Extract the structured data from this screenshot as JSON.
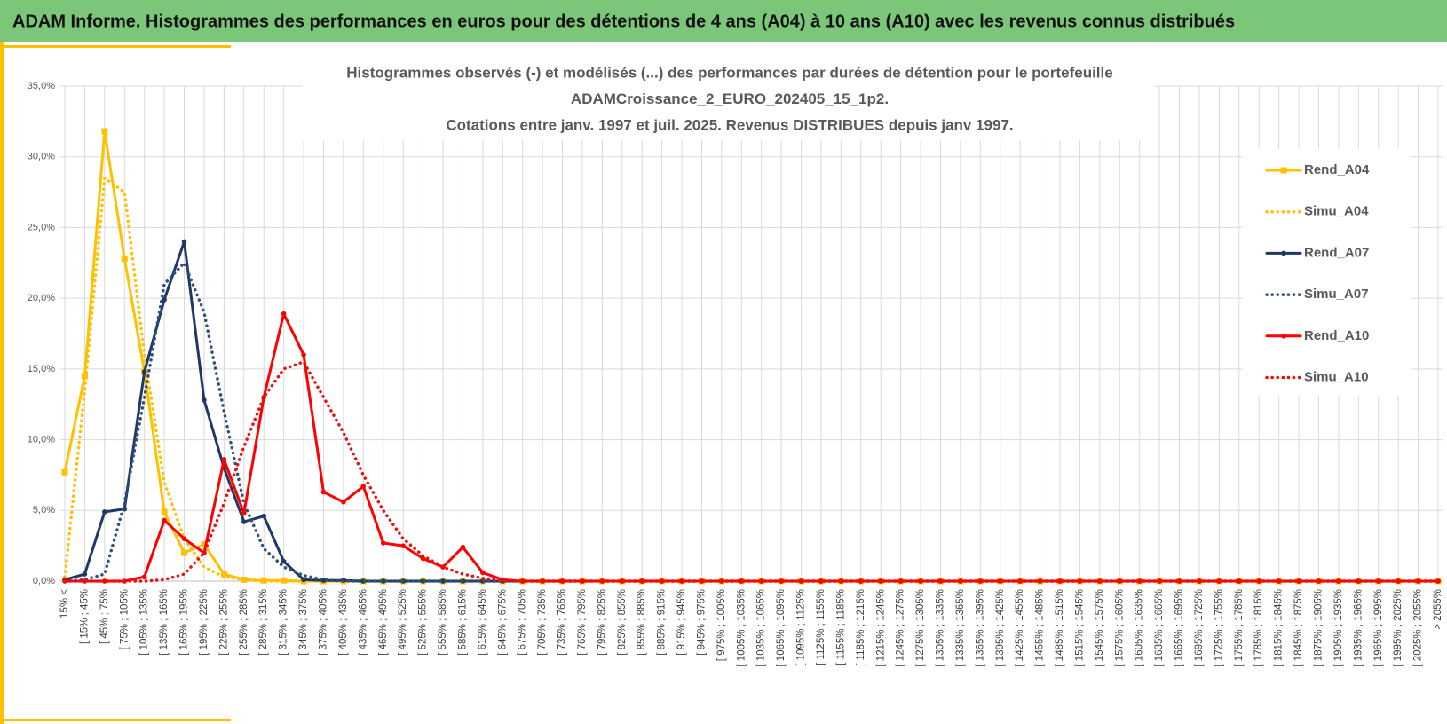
{
  "header": {
    "title": "ADAM Informe. Histogrammes des performances en euros pour des détentions de 4 ans (A04) à 10 ans (A10) avec les revenus connus distribués"
  },
  "chart_data": {
    "type": "line",
    "title": [
      "Histogrammes observés (-) et modélisés (...) des performances par durées de détention pour  le portefeuille",
      "ADAMCroissance_2_EURO_202405_15_1p2.",
      "Cotations entre janv. 1997 et juil. 2025. Revenus DISTRIBUES depuis janv 1997."
    ],
    "categories": [
      "15% <",
      "[ 15% ; 45%",
      "[ 45% ; 75%",
      "[ 75% ; 105%",
      "[ 105% ; 135%",
      "[ 135% ; 165%",
      "[ 165% ; 195%",
      "[ 195% ; 225%",
      "[ 225% ; 255%",
      "[ 255% ; 285%",
      "[ 285% ; 315%",
      "[ 315% ; 345%",
      "[ 345% ; 375%",
      "[ 375% ; 405%",
      "[ 405% ; 435%",
      "[ 435% ; 465%",
      "[ 465% ; 495%",
      "[ 495% ; 525%",
      "[ 525% ; 555%",
      "[ 555% ; 585%",
      "[ 585% ; 615%",
      "[ 615% ; 645%",
      "[ 645% ; 675%",
      "[ 675% ; 705%",
      "[ 705% ; 735%",
      "[ 735% ; 765%",
      "[ 765% ; 795%",
      "[ 795% ; 825%",
      "[ 825% ; 855%",
      "[ 855% ; 885%",
      "[ 885% ; 915%",
      "[ 915% ; 945%",
      "[ 945% ; 975%",
      "[ 975% ; 1005%",
      "[ 1005% ; 1035%",
      "[ 1035% ; 1065%",
      "[ 1065% ; 1095%",
      "[ 1095% ; 1125%",
      "[ 1125% ; 1155%",
      "[ 1155% ; 1185%",
      "[ 1185% ; 1215%",
      "[ 1215% ; 1245%",
      "[ 1245% ; 1275%",
      "[ 1275% ; 1305%",
      "[ 1305% ; 1335%",
      "[ 1335% ; 1365%",
      "[ 1365% ; 1395%",
      "[ 1395% ; 1425%",
      "[ 1425% ; 1455%",
      "[ 1455% ; 1485%",
      "[ 1485% ; 1515%",
      "[ 1515% ; 1545%",
      "[ 1545% ; 1575%",
      "[ 1575% ; 1605%",
      "[ 1605% ; 1635%",
      "[ 1635% ; 1665%",
      "[ 1665% ; 1695%",
      "[ 1695% ; 1725%",
      "[ 1725% ; 1755%",
      "[ 1755% ; 1785%",
      "[ 1785% ; 1815%",
      "[ 1815% ; 1845%",
      "[ 1845% ; 1875%",
      "[ 1875% ; 1905%",
      "[ 1905% ; 1935%",
      "[ 1935% ; 1965%",
      "[ 1965% ; 1995%",
      "[ 1995% ; 2025%",
      "[ 2025% ; 2055%",
      "> 2055%"
    ],
    "series": [
      {
        "name": "Rend_A04",
        "color": "#ffc000",
        "dash": "solid",
        "marker": "square",
        "values": [
          7.7,
          14.5,
          31.8,
          22.8,
          14.8,
          4.9,
          2.0,
          2.6,
          0.5,
          0.1,
          0.05,
          0.05,
          0,
          0,
          0,
          0,
          0,
          0,
          0,
          0,
          0,
          0,
          0,
          0,
          0,
          0,
          0,
          0,
          0,
          0,
          0,
          0,
          0,
          0,
          0,
          0,
          0,
          0,
          0,
          0,
          0,
          0,
          0,
          0,
          0,
          0,
          0,
          0,
          0,
          0,
          0,
          0,
          0,
          0,
          0,
          0,
          0,
          0,
          0,
          0,
          0,
          0,
          0,
          0,
          0,
          0,
          0,
          0,
          0,
          0
        ]
      },
      {
        "name": "Simu_A04",
        "color": "#ffc000",
        "dash": "dotted",
        "marker": null,
        "values": [
          0.3,
          13.5,
          28.5,
          27.5,
          16,
          7,
          3,
          1,
          0.3,
          0.1,
          0,
          0,
          0,
          0,
          0,
          0,
          0,
          0,
          0,
          0,
          0,
          0,
          0,
          0,
          0,
          0,
          0,
          0,
          0,
          0,
          0,
          0,
          0,
          0,
          0,
          0,
          0,
          0,
          0,
          0,
          0,
          0,
          0,
          0,
          0,
          0,
          0,
          0,
          0,
          0,
          0,
          0,
          0,
          0,
          0,
          0,
          0,
          0,
          0,
          0,
          0,
          0,
          0,
          0,
          0,
          0,
          0,
          0,
          0,
          0
        ]
      },
      {
        "name": "Rend_A07",
        "color": "#1f3864",
        "dash": "solid",
        "marker": "circle",
        "values": [
          0.1,
          0.5,
          4.9,
          5.1,
          14.8,
          19.9,
          24.0,
          12.8,
          8.0,
          4.2,
          4.6,
          1.4,
          0.1,
          0.05,
          0.05,
          0,
          0,
          0,
          0,
          0,
          0,
          0,
          0,
          0,
          0,
          0,
          0,
          0,
          0,
          0,
          0,
          0,
          0,
          0,
          0,
          0,
          0,
          0,
          0,
          0,
          0,
          0,
          0,
          0,
          0,
          0,
          0,
          0,
          0,
          0,
          0,
          0,
          0,
          0,
          0,
          0,
          0,
          0,
          0,
          0,
          0,
          0,
          0,
          0,
          0,
          0,
          0,
          0,
          0,
          0
        ]
      },
      {
        "name": "Simu_A07",
        "color": "#2f4f7f",
        "dash": "dotted",
        "marker": null,
        "values": [
          0,
          0.1,
          0.5,
          5.5,
          13,
          21,
          22.5,
          19,
          12,
          5.5,
          2.3,
          1.0,
          0.4,
          0.1,
          0,
          0,
          0,
          0,
          0,
          0,
          0,
          0,
          0,
          0,
          0,
          0,
          0,
          0,
          0,
          0,
          0,
          0,
          0,
          0,
          0,
          0,
          0,
          0,
          0,
          0,
          0,
          0,
          0,
          0,
          0,
          0,
          0,
          0,
          0,
          0,
          0,
          0,
          0,
          0,
          0,
          0,
          0,
          0,
          0,
          0,
          0,
          0,
          0,
          0,
          0,
          0,
          0,
          0,
          0,
          0
        ]
      },
      {
        "name": "Rend_A10",
        "color": "#ff0000",
        "dash": "solid",
        "marker": "circle",
        "values": [
          0,
          0,
          0,
          0,
          0.3,
          4.3,
          3.0,
          2.0,
          8.6,
          4.8,
          13,
          18.9,
          16,
          6.3,
          5.6,
          6.7,
          2.7,
          2.5,
          1.6,
          1.0,
          2.4,
          0.6,
          0.1,
          0,
          0,
          0,
          0,
          0,
          0,
          0,
          0,
          0,
          0,
          0,
          0,
          0,
          0,
          0,
          0,
          0,
          0,
          0,
          0,
          0,
          0,
          0,
          0,
          0,
          0,
          0,
          0,
          0,
          0,
          0,
          0,
          0,
          0,
          0,
          0,
          0,
          0,
          0,
          0,
          0,
          0,
          0,
          0,
          0,
          0,
          0
        ]
      },
      {
        "name": "Simu_A10",
        "color": "#e81010",
        "dash": "dotted",
        "marker": null,
        "values": [
          0,
          0,
          0,
          0,
          0,
          0.1,
          0.5,
          2,
          5.5,
          9.5,
          13,
          15,
          15.5,
          13,
          10.5,
          7.5,
          5,
          3,
          1.8,
          1.0,
          0.5,
          0.2,
          0.05,
          0,
          0,
          0,
          0,
          0,
          0,
          0,
          0,
          0,
          0,
          0,
          0,
          0,
          0,
          0,
          0,
          0,
          0,
          0,
          0,
          0,
          0,
          0,
          0,
          0,
          0,
          0,
          0,
          0,
          0,
          0,
          0,
          0,
          0,
          0,
          0,
          0,
          0,
          0,
          0,
          0,
          0,
          0,
          0,
          0,
          0,
          0
        ]
      }
    ],
    "ylim": [
      0,
      35
    ],
    "yticks": [
      {
        "value": 0,
        "label": "0,0%"
      },
      {
        "value": 5,
        "label": "5,0%"
      },
      {
        "value": 10,
        "label": "10,0%"
      },
      {
        "value": 15,
        "label": "15,0%"
      },
      {
        "value": 20,
        "label": "20,0%"
      },
      {
        "value": 25,
        "label": "25,0%"
      },
      {
        "value": 30,
        "label": "30,0%"
      },
      {
        "value": 35,
        "label": "35,0%"
      }
    ],
    "grid": true,
    "legend": "right"
  }
}
